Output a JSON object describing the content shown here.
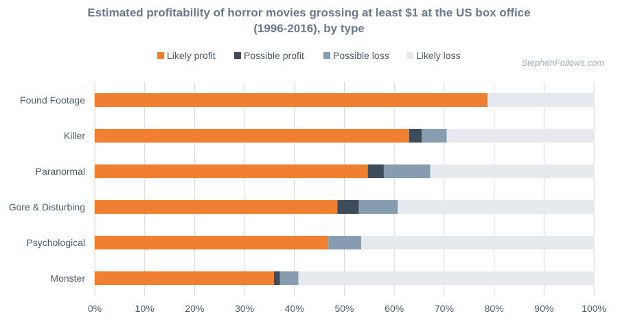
{
  "chart_data": {
    "type": "bar",
    "orientation": "horizontal",
    "stacked": true,
    "title_lines": [
      "Estimated profitability of horror movies grossing at least $1 at the US box office",
      "(1996-2016), by type"
    ],
    "watermark": "StephenFollows.com",
    "legend_position": "top",
    "grid": "vertical",
    "xlim": [
      0,
      100
    ],
    "x_ticks": [
      "0%",
      "10%",
      "20%",
      "30%",
      "40%",
      "50%",
      "60%",
      "70%",
      "80%",
      "90%",
      "100%"
    ],
    "categories": [
      "Found Footage",
      "Killer",
      "Paranormal",
      "Gore & Disturbing",
      "Psychological",
      "Monster"
    ],
    "series": [
      {
        "name": "Likely profit",
        "color": "#f07f30",
        "values": [
          78.7,
          63.0,
          54.7,
          48.6,
          46.8,
          35.9
        ]
      },
      {
        "name": "Possible profit",
        "color": "#3d4b5a",
        "values": [
          0.0,
          2.5,
          3.2,
          4.3,
          0.0,
          1.2
        ]
      },
      {
        "name": "Possible loss",
        "color": "#859daf",
        "values": [
          0.0,
          5.0,
          9.3,
          7.8,
          6.6,
          3.7
        ]
      },
      {
        "name": "Likely loss",
        "color": "#e6eaee",
        "values": [
          21.3,
          29.5,
          32.8,
          39.3,
          46.6,
          59.2
        ]
      }
    ]
  }
}
